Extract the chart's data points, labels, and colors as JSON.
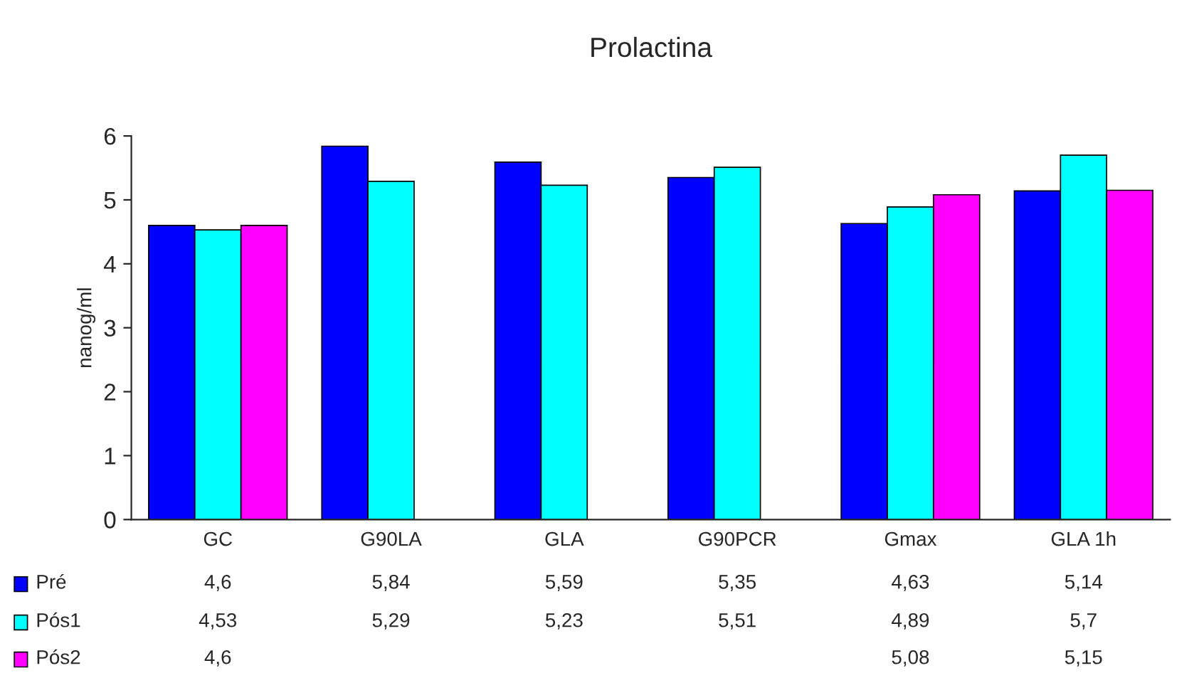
{
  "chart_data": {
    "type": "bar",
    "title": "Prolactina",
    "ylabel": "nanog/ml",
    "categories": [
      "GC",
      "G90LA",
      "GLA",
      "G90PCR",
      "Gmax",
      "GLA 1h"
    ],
    "series": [
      {
        "name": "Pré",
        "color": "#0000ff",
        "values": [
          4.6,
          5.84,
          5.59,
          5.35,
          4.63,
          5.14
        ],
        "value_labels": [
          "4,6",
          "5,84",
          "5,59",
          "5,35",
          "4,63",
          "5,14"
        ]
      },
      {
        "name": "Pós1",
        "color": "#00ffff",
        "values": [
          4.53,
          5.29,
          5.23,
          5.51,
          4.89,
          5.7
        ],
        "value_labels": [
          "4,53",
          "5,29",
          "5,23",
          "5,51",
          "4,89",
          "5,7"
        ]
      },
      {
        "name": "Pós2",
        "color": "#ff00ff",
        "values": [
          4.6,
          null,
          null,
          null,
          5.08,
          5.15
        ],
        "value_labels": [
          "4,6",
          null,
          null,
          null,
          "5,08",
          "5,15"
        ]
      }
    ],
    "ylim": [
      0,
      6
    ],
    "yticks": [
      0,
      1,
      2,
      3,
      4,
      5,
      6
    ],
    "grid": false,
    "legend": "bottom"
  }
}
